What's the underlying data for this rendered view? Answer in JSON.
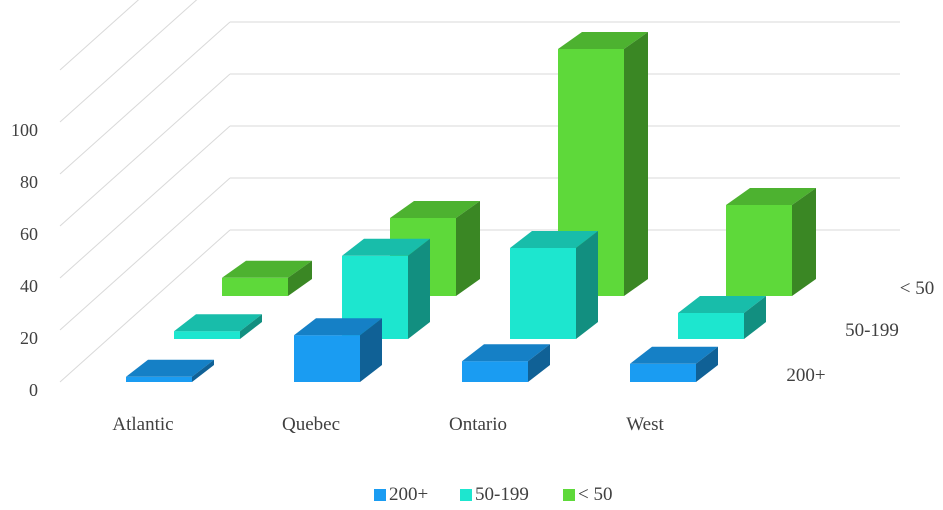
{
  "chart_data": {
    "type": "bar",
    "subtype": "3d-column",
    "categories": [
      "Atlantic",
      "Quebec",
      "Ontario",
      "West"
    ],
    "series": [
      {
        "name": "200+",
        "values": [
          2,
          18,
          8,
          7
        ],
        "color": "#1a9cf2"
      },
      {
        "name": "50-199",
        "values": [
          3,
          32,
          35,
          10
        ],
        "color": "#1de6cf"
      },
      {
        "name": "< 50",
        "values": [
          7,
          30,
          95,
          35
        ],
        "color": "#5ed93a"
      }
    ],
    "y_ticks": [
      "0",
      "20",
      "40",
      "60",
      "80",
      "100"
    ],
    "ylim": [
      0,
      100
    ],
    "grid": true,
    "legend": "bottom",
    "title": "",
    "xlabel": "",
    "ylabel": ""
  }
}
